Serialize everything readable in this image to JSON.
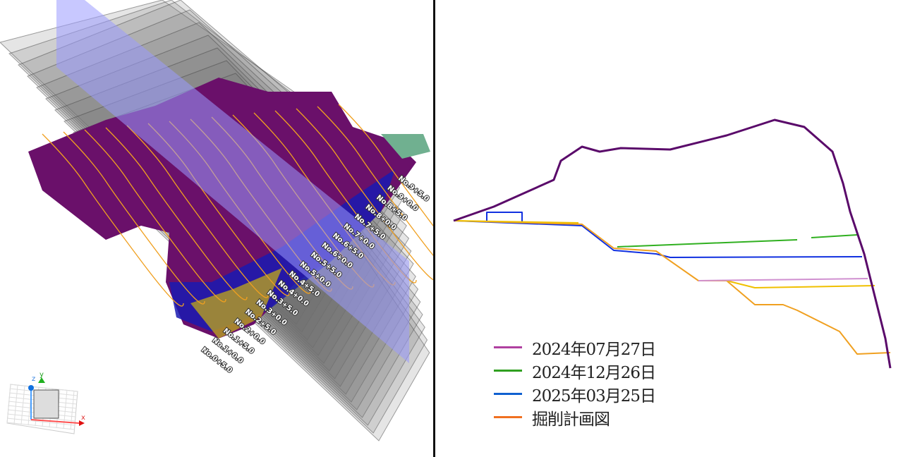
{
  "viewport_3d": {
    "station_labels": [
      "No.0+5.0",
      "No.1+0.0",
      "No.1+5.0",
      "No.2+0.0",
      "No.2+5.0",
      "No.3+0.0",
      "No.3+5.0",
      "No.4+0.0",
      "No.4+5.0",
      "No.5+0.0",
      "No.5+5.0",
      "No.6+0.0",
      "No.6+5.0",
      "No.7+0.0",
      "No.7+5.0",
      "No.8+0.0",
      "No.8+5.0",
      "No.9+0.0",
      "No.9+5.0"
    ],
    "axis_gizmo": {
      "x_label": "x",
      "y_label": "y",
      "z_label": "z"
    },
    "colors": {
      "terrain": "#6a106a",
      "contour": "#f0a020",
      "section_plane": "#9a9aff",
      "slices": "#6e6e6e",
      "blue_layer": "#1a1ab0",
      "yellow_layer": "#b8a020"
    }
  },
  "cross_section": {
    "legend": [
      {
        "label": "2024年07月27日",
        "color": "#b040a0"
      },
      {
        "label": "2024年12月26日",
        "color": "#30a020"
      },
      {
        "label": "2025年03月25日",
        "color": "#1060d0"
      },
      {
        "label": "掘削計画図",
        "color": "#f07020"
      }
    ],
    "profile_colors": {
      "terrain": "#5a0a6a",
      "green": "#30b020",
      "blue": "#1030e0",
      "yellow": "#f0c000",
      "orange": "#f0a020",
      "pink": "#d090d0"
    }
  }
}
